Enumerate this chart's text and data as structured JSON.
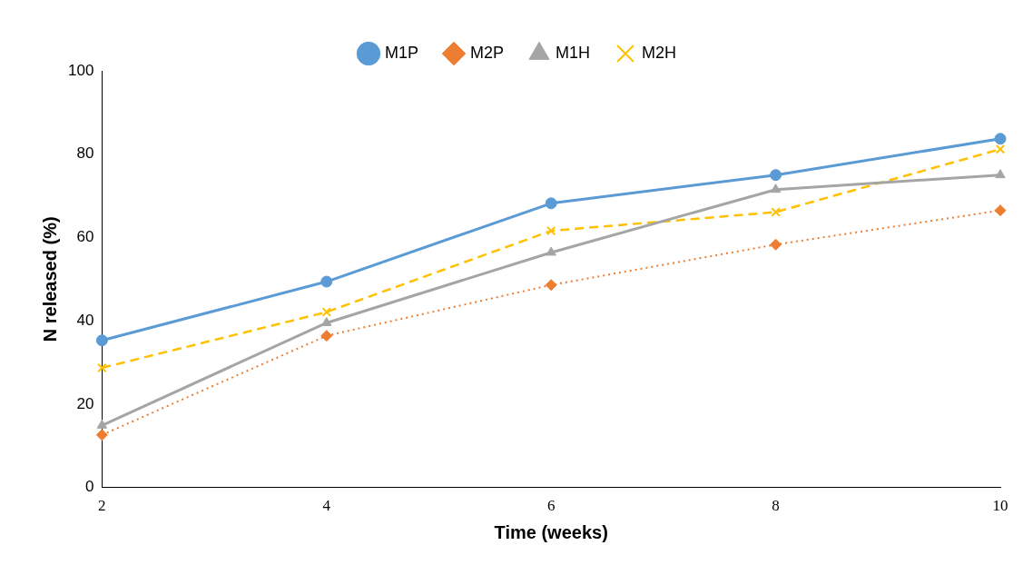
{
  "chart_data": {
    "type": "line",
    "xlabel": "Time (weeks)",
    "ylabel": "N released (%)",
    "categories": [
      "2",
      "4",
      "6",
      "8",
      "10"
    ],
    "ylim": [
      0,
      100
    ],
    "yticks": [
      0,
      20,
      40,
      60,
      80,
      100
    ],
    "grid": false,
    "legend": "top",
    "series": [
      {
        "name": "M1P",
        "color": "#5b9bd5",
        "marker": "circle",
        "line_style": "solid",
        "values": [
          35.3,
          49.4,
          68.2,
          75.0,
          83.7
        ]
      },
      {
        "name": "M2P",
        "color": "#ed7d31",
        "marker": "diamond",
        "line_style": "dotted",
        "values": [
          12.6,
          36.4,
          48.6,
          58.3,
          66.5
        ]
      },
      {
        "name": "M1H",
        "color": "#a5a5a5",
        "marker": "triangle",
        "line_style": "solid",
        "values": [
          14.9,
          39.5,
          56.4,
          71.5,
          75.0
        ]
      },
      {
        "name": "M2H",
        "color": "#ffc000",
        "marker": "cross",
        "line_style": "dashed",
        "values": [
          28.7,
          42.1,
          61.6,
          66.1,
          81.2
        ]
      }
    ]
  }
}
